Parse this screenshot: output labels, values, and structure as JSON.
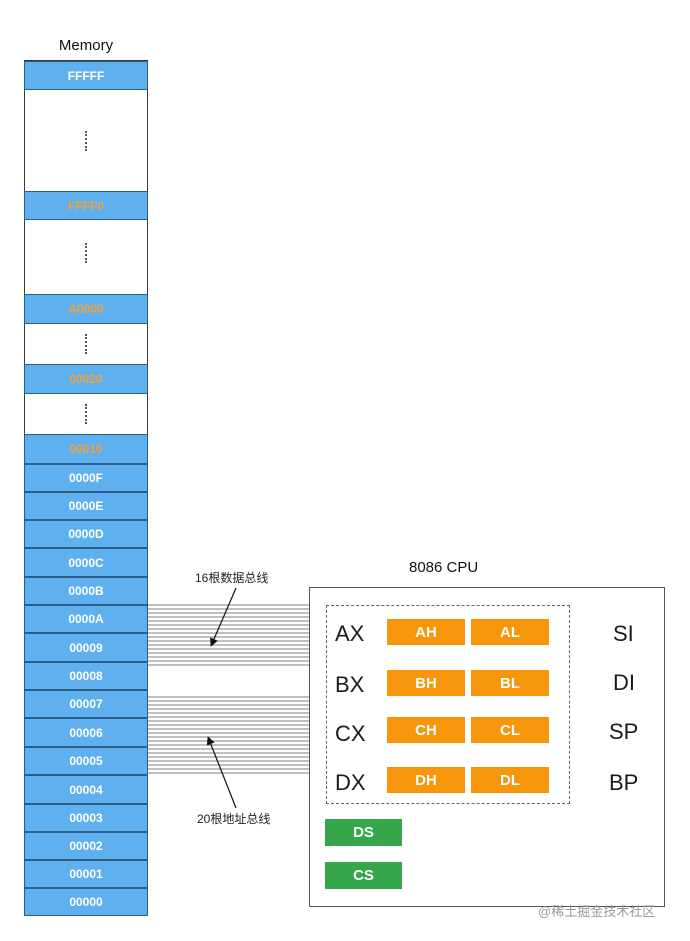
{
  "memory": {
    "title": "Memory",
    "cells": [
      "FFFFF",
      "FFFF0",
      "A0000",
      "00020",
      "00010",
      "0000F",
      "0000E",
      "0000D",
      "0000C",
      "0000B",
      "0000A",
      "00009",
      "00008",
      "00007",
      "00006",
      "00005",
      "00004",
      "00003",
      "00002",
      "00001",
      "00000"
    ]
  },
  "cpu": {
    "title": "8086 CPU",
    "general_registers": [
      "AX",
      "BX",
      "CX",
      "DX"
    ],
    "high_bytes": [
      "AH",
      "BH",
      "CH",
      "DH"
    ],
    "low_bytes": [
      "AL",
      "BL",
      "CL",
      "DL"
    ],
    "index_registers": [
      "SI",
      "DI",
      "SP",
      "BP"
    ],
    "segment_registers": [
      "DS",
      "CS"
    ]
  },
  "buses": {
    "data_bus_label": "16根数据总线",
    "address_bus_label": "20根地址总线"
  },
  "colors": {
    "memory_cell": "#5eb0ef",
    "highlight_address": "#f3a23b",
    "register": "#f7960b",
    "segment_register": "#35a64a"
  },
  "watermark": "@稀土掘金技术社区"
}
